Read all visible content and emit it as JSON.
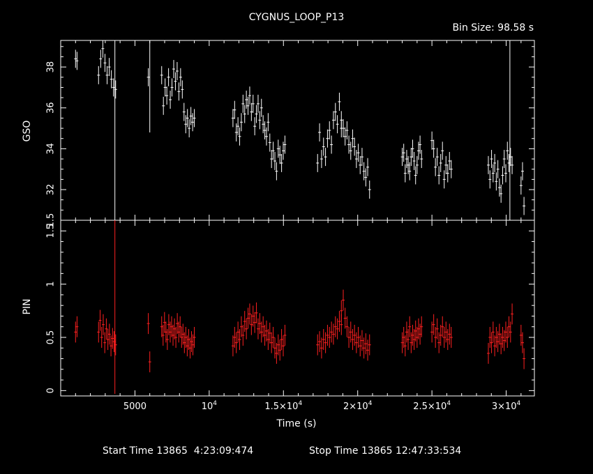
{
  "chart_data": {
    "type": "scatter",
    "title": "CYGNUS_LOOP_P13",
    "bin_size": "Bin Size: 98.58 s",
    "xlabel": "Time (s)",
    "xlim": [
      0,
      31900
    ],
    "x_ticks": [
      {
        "value": 5000,
        "label": "5000"
      },
      {
        "value": 10000,
        "label": "10",
        "sup": "4"
      },
      {
        "value": 15000,
        "label": "1.5×10",
        "sup": "4"
      },
      {
        "value": 20000,
        "label": "2×10",
        "sup": "4"
      },
      {
        "value": 25000,
        "label": "2.5×10",
        "sup": "4"
      },
      {
        "value": 30000,
        "label": "3×10",
        "sup": "4"
      }
    ],
    "footer": {
      "start": "Start Time 13865  4:23:09:474",
      "stop": "Stop Time 13865 12:47:33:534"
    },
    "panels": [
      {
        "name": "GSO",
        "ylabel": "GSO",
        "color": "#ffffff",
        "ylim": [
          30.5,
          39.3
        ],
        "y_ticks": [
          32,
          34,
          36,
          38
        ],
        "edge_tick_label": "1.5",
        "segments": [
          {
            "t0": 1000,
            "t1": 1100,
            "y": [
              38.4,
              38.3
            ]
          },
          {
            "t0": 2550,
            "t1": 3700,
            "y": [
              37.6,
              38.4,
              38.9,
              38.2,
              37.6,
              38.0,
              37.4,
              37.0,
              36.9
            ]
          },
          {
            "t0": 5900,
            "t1": 6000,
            "y": [
              37.5
            ]
          },
          {
            "t0": 6800,
            "t1": 9000,
            "y": [
              37.6,
              36.1,
              37.0,
              36.6,
              37.5,
              36.4,
              37.0,
              37.9,
              37.3,
              37.8,
              36.8,
              37.5,
              36.9,
              35.8,
              35.2,
              35.5,
              35.0,
              35.6,
              35.3,
              35.5
            ]
          },
          {
            "t0": 11600,
            "t1": 15100,
            "y": [
              35.5,
              35.9,
              34.8,
              35.1,
              34.6,
              35.3,
              36.2,
              35.7,
              36.4,
              36.1,
              36.6,
              35.8,
              36.2,
              35.1,
              35.7,
              36.2,
              35.4,
              36.0,
              35.2,
              34.9,
              34.6,
              35.3,
              34.3,
              33.5,
              33.9,
              33.4,
              32.9,
              34.0,
              33.7,
              33.3,
              33.9,
              34.2
            ]
          },
          {
            "t0": 17300,
            "t1": 18900,
            "y": [
              33.3,
              34.8,
              33.5,
              34.1,
              33.6,
              34.5,
              34.9,
              34.2,
              35.4,
              35.8,
              35.2,
              36.3,
              35.0
            ]
          },
          {
            "t0": 18900,
            "t1": 20800,
            "y": [
              35.4,
              35.0,
              34.6,
              34.9,
              34.2,
              33.9,
              34.5,
              34.1,
              33.5,
              33.8,
              33.2,
              33.6,
              32.9,
              32.6,
              33.1,
              32.0
            ]
          },
          {
            "t0": 23000,
            "t1": 24300,
            "y": [
              33.6,
              33.8,
              32.8,
              33.5,
              33.2,
              32.9,
              33.6,
              34.0,
              33.4,
              32.7,
              33.2,
              33.9,
              34.2,
              33.5
            ]
          },
          {
            "t0": 25000,
            "t1": 26300,
            "y": [
              34.4,
              34.0,
              33.1,
              33.6,
              32.7,
              33.3,
              33.9,
              32.5,
              33.2,
              32.8,
              33.4,
              33.0
            ]
          },
          {
            "t0": 28800,
            "t1": 30400,
            "y": [
              33.2,
              32.5,
              33.5,
              32.8,
              33.3,
              32.4,
              33.0,
              32.1,
              31.8,
              32.7,
              33.5,
              32.8,
              33.9,
              33.3,
              33.6,
              33.2
            ]
          },
          {
            "t0": 31000,
            "t1": 31200,
            "y": [
              32.2,
              32.9,
              31.2
            ]
          }
        ]
      },
      {
        "name": "PIN",
        "ylabel": "PIN",
        "color": "#ff2020",
        "ylim": [
          -0.05,
          1.6
        ],
        "y_ticks": [
          0,
          0.5,
          1,
          1.5
        ],
        "segments": [
          {
            "t0": 1000,
            "t1": 1100,
            "y": [
              0.55,
              0.6
            ]
          },
          {
            "t0": 2550,
            "t1": 3700,
            "y": [
              0.55,
              0.66,
              0.5,
              0.62,
              0.45,
              0.58,
              0.48,
              0.53,
              0.42,
              0.49,
              0.46,
              0.43
            ]
          },
          {
            "t0": 5900,
            "t1": 6000,
            "y": [
              0.63,
              0.27
            ]
          },
          {
            "t0": 6800,
            "t1": 9000,
            "y": [
              0.6,
              0.52,
              0.64,
              0.55,
              0.48,
              0.62,
              0.55,
              0.6,
              0.52,
              0.58,
              0.5,
              0.63,
              0.55,
              0.6,
              0.5,
              0.53,
              0.45,
              0.5,
              0.42,
              0.48,
              0.4,
              0.46,
              0.43,
              0.5
            ]
          },
          {
            "t0": 11600,
            "t1": 15100,
            "y": [
              0.42,
              0.5,
              0.45,
              0.55,
              0.48,
              0.6,
              0.52,
              0.65,
              0.58,
              0.68,
              0.72,
              0.62,
              0.7,
              0.64,
              0.73,
              0.58,
              0.63,
              0.55,
              0.6,
              0.52,
              0.56,
              0.48,
              0.54,
              0.45,
              0.5,
              0.4,
              0.35,
              0.43,
              0.38,
              0.48,
              0.42,
              0.52
            ]
          },
          {
            "t0": 17300,
            "t1": 18900,
            "y": [
              0.43,
              0.46,
              0.4,
              0.48,
              0.45,
              0.52,
              0.5,
              0.55,
              0.53,
              0.6,
              0.58,
              0.65,
              0.62
            ]
          },
          {
            "t0": 18900,
            "t1": 20800,
            "y": [
              0.75,
              0.85,
              0.68,
              0.6,
              0.5,
              0.55,
              0.48,
              0.52,
              0.45,
              0.5,
              0.42,
              0.47,
              0.4,
              0.44,
              0.38,
              0.43
            ]
          },
          {
            "t0": 23000,
            "t1": 24300,
            "y": [
              0.45,
              0.5,
              0.42,
              0.55,
              0.48,
              0.6,
              0.45,
              0.52,
              0.48,
              0.56,
              0.5,
              0.58,
              0.53,
              0.6
            ]
          },
          {
            "t0": 25000,
            "t1": 26300,
            "y": [
              0.55,
              0.62,
              0.5,
              0.58,
              0.45,
              0.52,
              0.6,
              0.5,
              0.55,
              0.48,
              0.53,
              0.5
            ]
          },
          {
            "t0": 28800,
            "t1": 30400,
            "y": [
              0.35,
              0.5,
              0.45,
              0.55,
              0.42,
              0.5,
              0.46,
              0.53,
              0.44,
              0.5,
              0.47,
              0.55,
              0.5,
              0.6,
              0.55,
              0.72
            ]
          },
          {
            "t0": 31000,
            "t1": 31200,
            "y": [
              0.52,
              0.45,
              0.3
            ]
          }
        ]
      }
    ]
  }
}
